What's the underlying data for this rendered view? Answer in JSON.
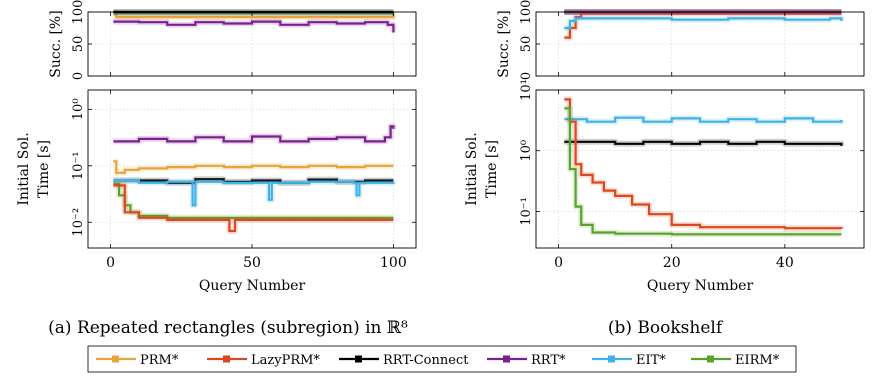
{
  "colors": {
    "PRM*": "#e8a33a",
    "LazyPRM*": "#d9481e",
    "RRT-Connect": "#000000",
    "RRT*": "#7b1f8f",
    "EIT*": "#3fb1e6",
    "EIRM*": "#5ba02a"
  },
  "legend": [
    "PRM*",
    "LazyPRM*",
    "RRT-Connect",
    "RRT*",
    "EIT*",
    "EIRM*"
  ],
  "chart_data": [
    {
      "type": "line",
      "panel": "a-success",
      "caption": "(a) Repeated rectangles (subregion) in ℝ⁸",
      "ylabel": "Succ. [%]",
      "xlabel": "",
      "xlim": [
        -8,
        108
      ],
      "ylim": [
        0,
        100
      ],
      "yscale": "linear",
      "xticks": [
        0,
        50,
        100
      ],
      "yticks": [
        0,
        50,
        100
      ],
      "ytick_labels": [
        "0",
        "50",
        "100"
      ],
      "grid": true,
      "series": [
        {
          "name": "PRM*",
          "x": [
            1,
            2,
            100
          ],
          "y": [
            99,
            92,
            99
          ]
        },
        {
          "name": "LazyPRM*",
          "x": [
            1,
            100
          ],
          "y": [
            99,
            99
          ]
        },
        {
          "name": "EIT*",
          "x": [
            1,
            100
          ],
          "y": [
            99,
            99
          ]
        },
        {
          "name": "EIRM*",
          "x": [
            1,
            100
          ],
          "y": [
            99,
            99
          ]
        },
        {
          "name": "RRT-Connect",
          "x": [
            1,
            100
          ],
          "y": [
            100,
            100
          ]
        },
        {
          "name": "RRT*",
          "x": [
            1,
            10,
            20,
            30,
            40,
            50,
            60,
            70,
            80,
            90,
            98,
            100
          ],
          "y": [
            85,
            84,
            80,
            84,
            82,
            85,
            80,
            84,
            82,
            84,
            80,
            68
          ]
        }
      ]
    },
    {
      "type": "line",
      "panel": "a-time",
      "ylabel": "Initial Sol. Time [s]",
      "xlabel": "Query Number",
      "xlim": [
        -8,
        108
      ],
      "ylim": [
        0.0035,
        2.2
      ],
      "yscale": "log",
      "xticks": [
        0,
        50,
        100
      ],
      "yticks": [
        0.01,
        0.1,
        1
      ],
      "ytick_labels": [
        "10⁻²",
        "10⁻¹",
        "10⁰"
      ],
      "grid": true,
      "series": [
        {
          "name": "RRT*",
          "x": [
            1,
            10,
            20,
            30,
            40,
            50,
            60,
            70,
            80,
            90,
            97,
            99,
            100
          ],
          "y": [
            0.27,
            0.3,
            0.27,
            0.32,
            0.27,
            0.33,
            0.27,
            0.3,
            0.32,
            0.27,
            0.32,
            0.5,
            0.45
          ]
        },
        {
          "name": "PRM*",
          "x": [
            1,
            2,
            5,
            10,
            20,
            30,
            40,
            50,
            60,
            70,
            80,
            90,
            100
          ],
          "y": [
            0.12,
            0.075,
            0.085,
            0.09,
            0.095,
            0.1,
            0.095,
            0.1,
            0.095,
            0.1,
            0.095,
            0.1,
            0.1
          ]
        },
        {
          "name": "RRT-Connect",
          "x": [
            1,
            10,
            20,
            30,
            40,
            50,
            60,
            70,
            80,
            90,
            100
          ],
          "y": [
            0.055,
            0.055,
            0.05,
            0.058,
            0.052,
            0.055,
            0.05,
            0.057,
            0.052,
            0.055,
            0.055
          ]
        },
        {
          "name": "EIT*",
          "x": [
            1,
            10,
            20,
            28,
            29,
            30,
            40,
            55,
            56,
            57,
            70,
            86,
            87,
            88,
            100
          ],
          "y": [
            0.055,
            0.05,
            0.052,
            0.052,
            0.02,
            0.052,
            0.05,
            0.05,
            0.025,
            0.05,
            0.052,
            0.05,
            0.03,
            0.05,
            0.052
          ]
        },
        {
          "name": "EIRM*",
          "x": [
            1,
            3,
            5,
            7,
            10,
            20,
            30,
            40,
            50,
            60,
            70,
            80,
            90,
            100
          ],
          "y": [
            0.048,
            0.03,
            0.02,
            0.015,
            0.013,
            0.012,
            0.012,
            0.012,
            0.012,
            0.012,
            0.012,
            0.012,
            0.012,
            0.012
          ]
        },
        {
          "name": "LazyPRM*",
          "x": [
            1,
            5,
            10,
            20,
            30,
            40,
            42,
            44,
            50,
            60,
            70,
            80,
            90,
            100
          ],
          "y": [
            0.045,
            0.015,
            0.012,
            0.011,
            0.011,
            0.011,
            0.007,
            0.011,
            0.011,
            0.011,
            0.011,
            0.011,
            0.011,
            0.011
          ]
        }
      ]
    },
    {
      "type": "line",
      "panel": "b-success",
      "caption": "(b) Bookshelf",
      "ylabel": "Succ. [%]",
      "xlabel": "",
      "xlim": [
        -4,
        54
      ],
      "ylim": [
        0,
        100
      ],
      "yscale": "linear",
      "xticks": [
        0,
        20,
        40
      ],
      "yticks": [
        0,
        50,
        100
      ],
      "ytick_labels": [
        "0",
        "50",
        "100"
      ],
      "grid": true,
      "series": [
        {
          "name": "PRM*",
          "x": [
            1,
            50
          ],
          "y": [
            100,
            100
          ]
        },
        {
          "name": "EIRM*",
          "x": [
            1,
            50
          ],
          "y": [
            100,
            100
          ]
        },
        {
          "name": "RRT-Connect",
          "x": [
            1,
            50
          ],
          "y": [
            100,
            100
          ]
        },
        {
          "name": "LazyPRM*",
          "x": [
            1,
            2,
            3,
            4,
            50
          ],
          "y": [
            60,
            75,
            92,
            98,
            98
          ]
        },
        {
          "name": "EIT*",
          "x": [
            1,
            2,
            3,
            10,
            20,
            30,
            40,
            48,
            50
          ],
          "y": [
            75,
            86,
            90,
            90,
            88,
            90,
            88,
            90,
            86
          ]
        },
        {
          "name": "RRT*",
          "x": [
            1,
            50
          ],
          "y": [
            100,
            100
          ]
        }
      ]
    },
    {
      "type": "line",
      "panel": "b-time",
      "ylabel": "Initial Sol. Time [s]",
      "xlabel": "Query Number",
      "xlim": [
        -4,
        54
      ],
      "ylim": [
        0.025,
        10
      ],
      "yscale": "log",
      "xticks": [
        0,
        20,
        40
      ],
      "yticks": [
        0.1,
        1,
        10
      ],
      "ytick_labels": [
        "10⁻¹",
        "10⁰",
        "10¹"
      ],
      "grid": true,
      "series": [
        {
          "name": "EIT*",
          "x": [
            1,
            5,
            10,
            15,
            20,
            25,
            30,
            35,
            40,
            45,
            50
          ],
          "y": [
            3.3,
            3.0,
            3.5,
            3.0,
            3.4,
            3.0,
            3.3,
            3.0,
            3.4,
            3.0,
            3.2
          ]
        },
        {
          "name": "RRT-Connect",
          "x": [
            1,
            5,
            10,
            15,
            20,
            25,
            30,
            35,
            40,
            45,
            50
          ],
          "y": [
            1.4,
            1.4,
            1.3,
            1.4,
            1.3,
            1.4,
            1.3,
            1.4,
            1.3,
            1.3,
            1.2
          ]
        },
        {
          "name": "LazyPRM*",
          "x": [
            1,
            2,
            3,
            4,
            6,
            8,
            10,
            13,
            16,
            20,
            25,
            30,
            40,
            50
          ],
          "y": [
            7.0,
            3.0,
            0.6,
            0.4,
            0.3,
            0.22,
            0.18,
            0.13,
            0.09,
            0.06,
            0.055,
            0.055,
            0.053,
            0.052
          ]
        },
        {
          "name": "EIRM*",
          "x": [
            1,
            2,
            3,
            4,
            6,
            10,
            20,
            30,
            40,
            50
          ],
          "y": [
            5.0,
            0.5,
            0.12,
            0.06,
            0.045,
            0.043,
            0.042,
            0.042,
            0.042,
            0.042
          ]
        }
      ]
    }
  ]
}
